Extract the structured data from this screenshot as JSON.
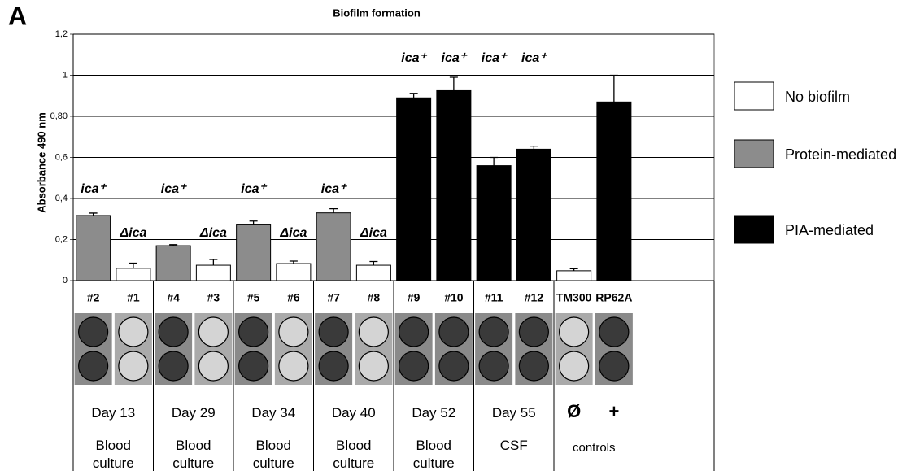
{
  "panel_label": "A",
  "chart_data": {
    "type": "bar",
    "title": "Biofilm formation",
    "y_label": "Absorbance 490 nm",
    "categories": [
      "#2",
      "#1",
      "#4",
      "#3",
      "#5",
      "#6",
      "#7",
      "#8",
      "#9",
      "#10",
      "#11",
      "#12",
      "TM300",
      "RP62A"
    ],
    "series": [
      {
        "name": "No biofilm",
        "color": "#ffffff",
        "values": [
          null,
          0.06,
          null,
          0.075,
          null,
          0.083,
          null,
          0.075,
          null,
          null,
          null,
          null,
          0.048,
          null
        ],
        "errors": [
          null,
          0.025,
          null,
          0.028,
          null,
          0.012,
          null,
          0.018,
          null,
          null,
          null,
          null,
          0.01,
          null
        ]
      },
      {
        "name": "Protein-mediated",
        "color": "#8c8c8c",
        "values": [
          0.317,
          null,
          0.17,
          null,
          0.275,
          null,
          0.33,
          null,
          null,
          null,
          null,
          null,
          null,
          null
        ],
        "errors": [
          0.012,
          null,
          0.005,
          null,
          0.015,
          null,
          0.02,
          null,
          null,
          null,
          null,
          null,
          null,
          null
        ]
      },
      {
        "name": "PIA-mediated",
        "color": "#000000",
        "values": [
          null,
          null,
          null,
          null,
          null,
          null,
          null,
          null,
          0.89,
          0.925,
          0.56,
          0.64,
          null,
          0.87
        ],
        "errors": [
          null,
          null,
          null,
          null,
          null,
          null,
          null,
          null,
          0.022,
          0.065,
          0.04,
          0.015,
          null,
          0.13
        ]
      }
    ],
    "bar_labels": [
      "ica⁺",
      "Δica",
      "ica⁺",
      "Δica",
      "ica⁺",
      "Δica",
      "ica⁺",
      "Δica",
      "ica⁺",
      "ica⁺",
      "ica⁺",
      "ica⁺",
      null,
      null
    ],
    "ylim": [
      0,
      1.2
    ],
    "yticks": [
      0,
      {
        "value": 0.2,
        "label": "0,2"
      },
      {
        "value": 0.4,
        "label": "0,4"
      },
      {
        "value": 0.6,
        "label": "0,6"
      },
      {
        "value": 0.8,
        "label": "0,80"
      },
      1,
      {
        "value": 1.2,
        "label": "1,2"
      }
    ],
    "grid": true,
    "groups": [
      {
        "day": "Day 13",
        "source": "Blood culture"
      },
      {
        "day": "Day 29",
        "source": "Blood culture"
      },
      {
        "day": "Day 34",
        "source": "Blood culture"
      },
      {
        "day": "Day 40",
        "source": "Blood culture"
      },
      {
        "day": "Day 52",
        "source": "Blood culture"
      },
      {
        "day": "Day 55",
        "source": "CSF"
      },
      {
        "day": "Ø",
        "source": "controls"
      },
      {
        "day": "+",
        "source": null
      }
    ]
  }
}
